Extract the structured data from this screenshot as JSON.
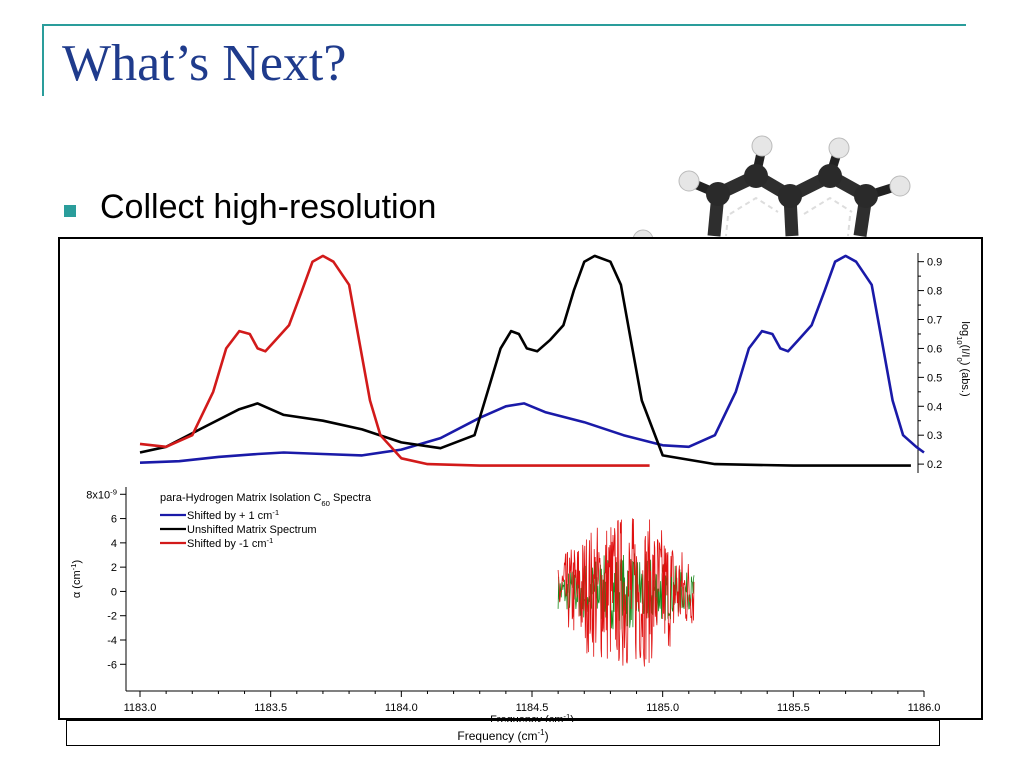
{
  "slide": {
    "title": "What’s Next?",
    "bullets": [
      "Collect high-resolution"
    ]
  },
  "molecule": {
    "icon": "ball-and-stick-molecule"
  },
  "background_axis": {
    "label": "Frequency (cm",
    "label_sup": "-1",
    "label_end": ")"
  },
  "chart_data": [
    {
      "type": "line",
      "position": "upper-panel",
      "ylabel": "log",
      "ylabel_sub1": "10",
      "ylabel_mid": "(I/I",
      "ylabel_sub2": "0",
      "ylabel_end": ") (abs.)",
      "xlim": [
        1183.0,
        1186.0
      ],
      "ylim": [
        0.19,
        0.93
      ],
      "ticks": [
        "0.9",
        "0.8",
        "0.7",
        "0.6",
        "0.5",
        "0.4",
        "0.3",
        "0.2"
      ],
      "tick_values": [
        0.9,
        0.8,
        0.7,
        0.6,
        0.5,
        0.4,
        0.3,
        0.2
      ],
      "series": [
        {
          "color": "#1a1aa8",
          "x": [
            1183.0,
            1183.15,
            1183.3,
            1183.45,
            1183.55,
            1183.7,
            1183.85,
            1184.0,
            1184.15,
            1184.3,
            1184.4,
            1184.47,
            1184.55,
            1184.7,
            1184.85,
            1185.0,
            1185.1,
            1185.2,
            1185.28,
            1185.33,
            1185.38,
            1185.42,
            1185.45,
            1185.48,
            1185.52,
            1185.57,
            1185.62,
            1185.66,
            1185.7,
            1185.74,
            1185.8,
            1185.84,
            1185.88,
            1185.92,
            1185.97,
            1186.0
          ],
          "y": [
            0.205,
            0.21,
            0.225,
            0.235,
            0.24,
            0.235,
            0.23,
            0.25,
            0.29,
            0.36,
            0.4,
            0.41,
            0.38,
            0.345,
            0.3,
            0.265,
            0.26,
            0.3,
            0.45,
            0.6,
            0.66,
            0.65,
            0.6,
            0.59,
            0.63,
            0.68,
            0.8,
            0.9,
            0.92,
            0.9,
            0.82,
            0.62,
            0.42,
            0.3,
            0.26,
            0.24
          ]
        },
        {
          "color": "#000000",
          "x": [
            1183.0,
            1183.1,
            1183.25,
            1183.38,
            1183.45,
            1183.55,
            1183.7,
            1183.85,
            1184.0,
            1184.15,
            1184.28,
            1184.33,
            1184.38,
            1184.42,
            1184.45,
            1184.48,
            1184.52,
            1184.57,
            1184.62,
            1184.66,
            1184.7,
            1184.74,
            1184.8,
            1184.84,
            1184.88,
            1184.92,
            1185.0,
            1185.2,
            1185.5,
            1185.95
          ],
          "y": [
            0.24,
            0.26,
            0.33,
            0.39,
            0.41,
            0.37,
            0.35,
            0.32,
            0.275,
            0.255,
            0.3,
            0.45,
            0.6,
            0.66,
            0.65,
            0.6,
            0.59,
            0.63,
            0.68,
            0.8,
            0.9,
            0.92,
            0.9,
            0.82,
            0.62,
            0.42,
            0.23,
            0.2,
            0.195,
            0.195
          ]
        },
        {
          "color": "#d21a1a",
          "x": [
            1183.0,
            1183.1,
            1183.2,
            1183.28,
            1183.33,
            1183.38,
            1183.42,
            1183.45,
            1183.48,
            1183.52,
            1183.57,
            1183.62,
            1183.66,
            1183.7,
            1183.74,
            1183.8,
            1183.84,
            1183.88,
            1183.92,
            1184.0,
            1184.1,
            1184.3,
            1184.6,
            1184.95
          ],
          "y": [
            0.27,
            0.26,
            0.3,
            0.45,
            0.6,
            0.66,
            0.65,
            0.6,
            0.59,
            0.63,
            0.68,
            0.8,
            0.9,
            0.92,
            0.9,
            0.82,
            0.62,
            0.42,
            0.3,
            0.22,
            0.2,
            0.195,
            0.195,
            0.195
          ]
        }
      ]
    },
    {
      "type": "line",
      "position": "lower-panel",
      "title": "para-Hydrogen Matrix Isolation C",
      "title_sub": "60",
      "title_end": " Spectra",
      "xlabel": "Frequency (cm",
      "xlabel_sup": "-1",
      "xlabel_end": ")",
      "ylabel": "α (cm",
      "ylabel_sup": "-1",
      "ylabel_end": ")",
      "xlim": [
        1183.0,
        1186.0
      ],
      "ylim": [
        -8.2,
        8.6
      ],
      "xticks": [
        "1183.0",
        "1183.5",
        "1184.0",
        "1184.5",
        "1185.0",
        "1185.5",
        "1186.0"
      ],
      "xtick_values": [
        1183.0,
        1183.5,
        1184.0,
        1184.5,
        1185.0,
        1185.5,
        1186.0
      ],
      "yticks": [
        "8x10",
        "6",
        "4",
        "2",
        "0",
        "-2",
        "-4",
        "-6"
      ],
      "ytick_sup": "-9",
      "ytick_values": [
        8,
        6,
        4,
        2,
        0,
        -2,
        -4,
        -6
      ],
      "legend": [
        {
          "name": "Shifted by + 1 cm",
          "sup": "-1",
          "color": "#1a1aa8"
        },
        {
          "name": "Unshifted Matrix Spectrum",
          "sup": "",
          "color": "#000000"
        },
        {
          "name": "Shifted by -1 cm",
          "sup": "-1",
          "color": "#d21a1a"
        }
      ],
      "noise": {
        "x_range": [
          1184.6,
          1185.12
        ],
        "y_range": [
          -8,
          8.4
        ],
        "colors": [
          "#e01010",
          "#1c8a1c"
        ]
      }
    }
  ]
}
